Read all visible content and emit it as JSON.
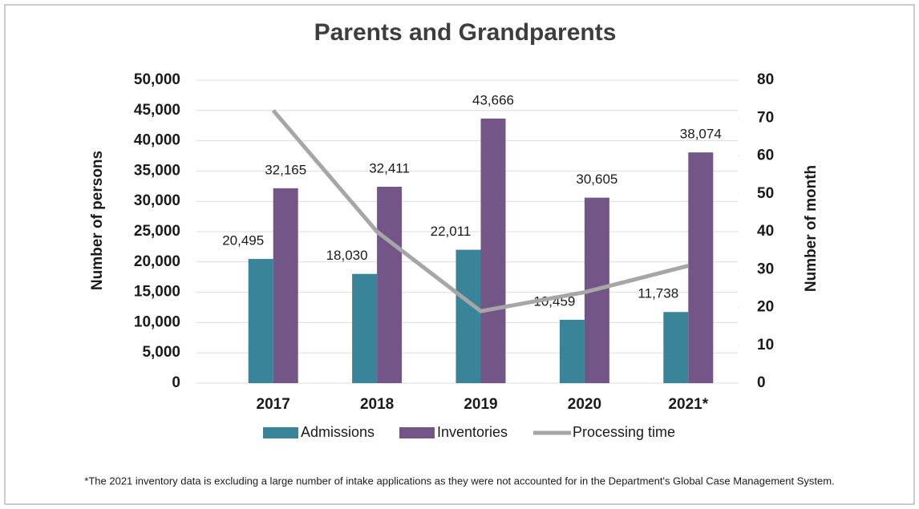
{
  "chart_data": {
    "type": "bar_line",
    "title": "Parents and Grandparents",
    "categories": [
      "2017",
      "2018",
      "2019",
      "2020",
      "2021*"
    ],
    "series": [
      {
        "name": "Admissions",
        "color": "#3a8499",
        "values": [
          20495,
          18030,
          22011,
          10459,
          11738
        ],
        "value_labels": [
          "20,495",
          "18,030",
          "22,011",
          "10,459",
          "11,738"
        ]
      },
      {
        "name": "Inventories",
        "color": "#735587",
        "values": [
          32165,
          32411,
          43666,
          30605,
          38074
        ],
        "value_labels": [
          "32,165",
          "32,411",
          "43,666",
          "30,605",
          "38,074"
        ]
      },
      {
        "name": "Processing time",
        "color": "#a6a6a6",
        "axis": "y2",
        "type": "line",
        "values": [
          72,
          40,
          19,
          24,
          31
        ]
      }
    ],
    "ylabel": "Number of persons",
    "y2label": "Number of month",
    "ylim": [
      0,
      50000
    ],
    "yticks": [
      0,
      {
        "value": 5000,
        "label": "5,000"
      },
      {
        "value": 10000,
        "label": "10,000"
      },
      {
        "value": 15000,
        "label": "15,000"
      },
      {
        "value": 20000,
        "label": "20,000"
      },
      {
        "value": 25000,
        "label": "25,000"
      },
      {
        "value": 30000,
        "label": "30,000"
      },
      {
        "value": 35000,
        "label": "35,000"
      },
      {
        "value": 40000,
        "label": "40,000"
      },
      {
        "value": 45000,
        "label": "45,000"
      },
      {
        "value": 50000,
        "label": "50,000"
      }
    ],
    "y2lim": [
      0,
      80
    ],
    "y2ticks": [
      0,
      10,
      20,
      30,
      40,
      50,
      60,
      70,
      80
    ],
    "grid": true,
    "legend": "bottom",
    "footnote": "*The 2021 inventory data is excluding a large number of intake applications as they were not accounted for in the Department's Global Case Management System."
  }
}
